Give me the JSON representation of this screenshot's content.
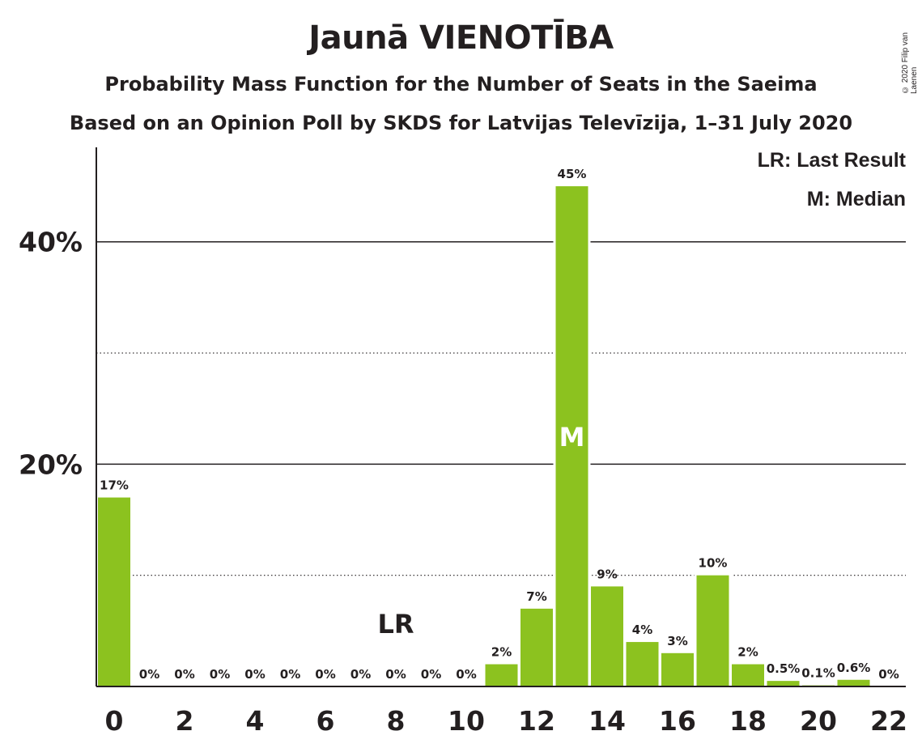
{
  "title": "Jaunā VIENOTĪBA",
  "subtitle": "Probability Mass Function for the Number of Seats in the Saeima",
  "subtitle2": "Based on an Opinion Poll by SKDS for Latvijas Televīzija, 1–31 July 2020",
  "copyright": "© 2020 Filip van Laenen",
  "legend": {
    "last_result": "LR: Last Result",
    "median": "M: Median"
  },
  "colors": {
    "bar": "#8cc21f",
    "text": "#231f20"
  },
  "chart_data": {
    "type": "bar",
    "x": [
      0,
      1,
      2,
      3,
      4,
      5,
      6,
      7,
      8,
      9,
      10,
      11,
      12,
      13,
      14,
      15,
      16,
      17,
      18,
      19,
      20,
      21,
      22
    ],
    "values": [
      17,
      0,
      0,
      0,
      0,
      0,
      0,
      0,
      0,
      0,
      0,
      2,
      7,
      45,
      9,
      4,
      3,
      10,
      2,
      0.5,
      0.1,
      0.6,
      0
    ],
    "value_labels": [
      "17%",
      "0%",
      "0%",
      "0%",
      "0%",
      "0%",
      "0%",
      "0%",
      "0%",
      "0%",
      "0%",
      "2%",
      "7%",
      "45%",
      "9%",
      "4%",
      "3%",
      "10%",
      "2%",
      "0.5%",
      "0.1%",
      "0.6%",
      "0%"
    ],
    "x_ticks": [
      "0",
      "2",
      "4",
      "6",
      "8",
      "10",
      "12",
      "14",
      "16",
      "18",
      "20",
      "22"
    ],
    "x_tick_values": [
      0,
      2,
      4,
      6,
      8,
      10,
      12,
      14,
      16,
      18,
      20,
      22
    ],
    "y_ticks": [
      "20%",
      "40%"
    ],
    "y_tick_values": [
      20,
      40
    ],
    "y_minor_gridlines": [
      10,
      30
    ],
    "ylim": [
      0,
      48.5
    ],
    "median_seat": 13,
    "median_label": "M",
    "last_result_seat": 8,
    "last_result_label": "LR"
  }
}
